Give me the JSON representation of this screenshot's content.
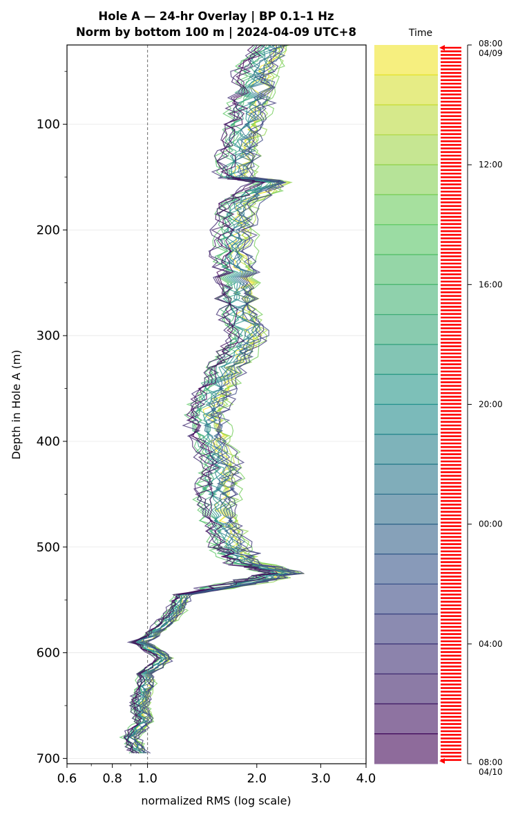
{
  "title_line1": "Hole A — 24-hr Overlay  |  BP 0.1–1 Hz",
  "title_line2": "Norm by bottom 100 m  |  2024-04-09 UTC+8",
  "chart_data": {
    "type": "line",
    "title": "Hole A — 24-hr Overlay  |  BP 0.1–1 Hz\nNorm by bottom 100 m  |  2024-04-09 UTC+8",
    "xlabel": "normalized RMS  (log scale)",
    "ylabel": "Depth in Hole A (m)",
    "x_scale": "log",
    "xlim": [
      0.6,
      4.0
    ],
    "ylim": [
      705,
      25
    ],
    "x_ticks": [
      "0.6",
      "0.8",
      "1.0",
      "2.0",
      "3.0",
      "4.0"
    ],
    "x_tick_values": [
      0.6,
      0.8,
      1.0,
      2.0,
      3.0,
      4.0
    ],
    "y_ticks": [
      "100",
      "200",
      "300",
      "400",
      "500",
      "600",
      "700"
    ],
    "y_tick_values": [
      100,
      200,
      300,
      400,
      500,
      600,
      700
    ],
    "reference_line": {
      "x": 1.0,
      "style": "dashed"
    },
    "grid": "horizontal",
    "colormap": "viridis",
    "n_curves": 24,
    "depths": [
      25,
      50,
      75,
      100,
      125,
      150,
      155,
      175,
      200,
      225,
      250,
      275,
      300,
      325,
      350,
      375,
      400,
      425,
      450,
      475,
      500,
      515,
      525,
      535,
      545,
      560,
      575,
      590,
      605,
      620,
      635,
      650,
      665,
      680,
      695
    ],
    "representative_rms": [
      2.2,
      2.0,
      1.95,
      1.85,
      1.8,
      1.75,
      2.2,
      1.78,
      1.75,
      1.72,
      1.78,
      1.78,
      1.9,
      1.7,
      1.55,
      1.45,
      1.5,
      1.6,
      1.55,
      1.6,
      1.7,
      1.85,
      2.4,
      1.8,
      1.25,
      1.2,
      1.1,
      0.95,
      1.12,
      1.0,
      0.98,
      0.95,
      0.98,
      0.9,
      0.95
    ],
    "colorbar": {
      "title": "Time",
      "ticks": [
        "08:00\n04/09",
        "12:00",
        "16:00",
        "20:00",
        "00:00",
        "04:00",
        "08:00\n04/10"
      ]
    }
  }
}
